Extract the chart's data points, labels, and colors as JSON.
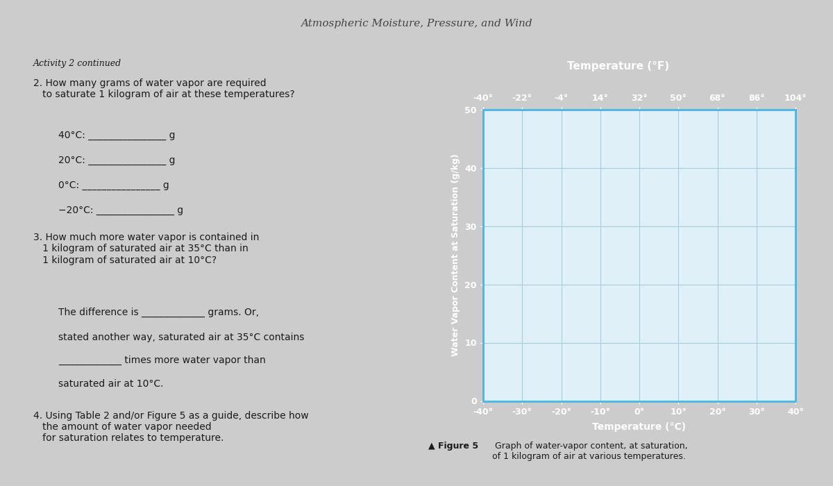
{
  "page_title": "Atmospheric Moisture, Pressure, and Wind",
  "activity_label": "Activity 2 continued",
  "question2_text": "2. How many grams of water vapor are required\n   to saturate 1 kilogram of air at these temperatures?",
  "q2_items": [
    "40°C: ________________ g",
    "20°C: ________________ g",
    "0°C: ________________ g",
    "−20°C: ________________ g"
  ],
  "question3_text": "3. How much more water vapor is contained in\n   1 kilogram of saturated air at 35°C than in\n   1 kilogram of saturated air at 10°C?",
  "q3_line1": "The difference is _____________ grams. Or,",
  "q3_line2": "stated another way, saturated air at 35°C contains",
  "q3_line3": "_____________ times more water vapor than",
  "q3_line4": "saturated air at 10°C.",
  "question4_text": "4. Using Table 2 and/or Figure 5 as a guide, describe how\n   the amount of water vapor needed\n   for saturation relates to temperature.",
  "chart_bg_color": "#4db8e8",
  "chart_inner_bg": "#dff0f8",
  "chart_title": "Temperature (°F)",
  "chart_xlabel": "Temperature (°C)",
  "chart_ylabel": "Water Vapor Content at Saturation (g/kg)",
  "x_ticks_C": [
    -40,
    -30,
    -20,
    -10,
    0,
    10,
    20,
    30,
    40
  ],
  "x_ticks_F": [
    -40,
    -22,
    -4,
    14,
    32,
    50,
    68,
    86,
    104
  ],
  "y_ticks": [
    0,
    10,
    20,
    30,
    40,
    50
  ],
  "xlim": [
    -40,
    40
  ],
  "ylim": [
    0,
    50
  ],
  "figure_caption_bold": "▲ Figure 5",
  "figure_caption": " Graph of water-vapor content, at saturation,\nof 1 kilogram of air at various temperatures.",
  "page_bg": "#cccccc",
  "left_panel_bg": "#e0e0e0",
  "text_color": "#1a1a1a",
  "chart_label_color": "#ffffff",
  "grid_color": "#a8ccdc",
  "answer_line_color": "#888888"
}
